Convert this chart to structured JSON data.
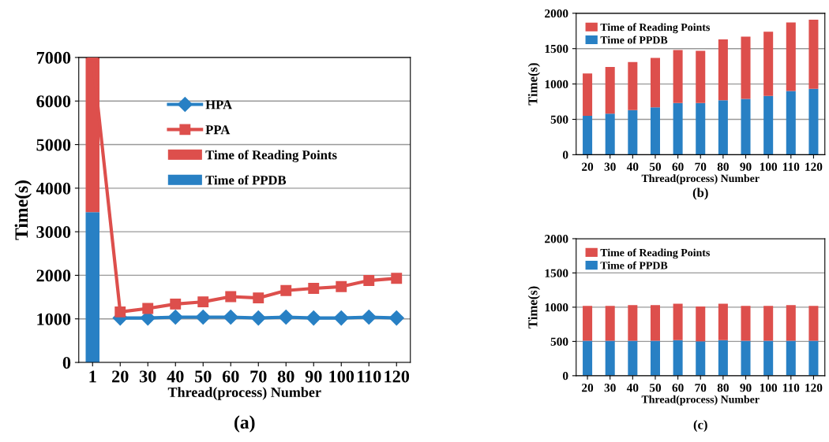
{
  "chart_data": [
    {
      "type": "line",
      "categories": [
        "1",
        "20",
        "30",
        "40",
        "50",
        "60",
        "70",
        "80",
        "90",
        "100",
        "110",
        "120"
      ],
      "xlabel": "Thread(process) Number",
      "ylabel": "Time(s)",
      "annotations": [
        "(a)"
      ],
      "ylim": [
        0,
        7000
      ],
      "yticks": [
        0,
        1000,
        2000,
        3000,
        4000,
        5000,
        6000,
        7000
      ],
      "grid": "y",
      "legend": "top",
      "stacked": true,
      "series": [
        {
          "name": "HPA",
          "type": "line",
          "marker": "diamond",
          "color": "#2880c4",
          "values": [
            null,
            1020,
            1020,
            1040,
            1040,
            1040,
            1020,
            1040,
            1020,
            1020,
            1040,
            1020
          ]
        },
        {
          "name": "PPA",
          "type": "line",
          "marker": "square",
          "color": "#dd4f4c",
          "values": [
            7000,
            1160,
            1240,
            1340,
            1390,
            1510,
            1480,
            1650,
            1700,
            1740,
            1880,
            1930
          ]
        },
        {
          "name": "Time of PPDB",
          "type": "bar",
          "color": "#2880c4",
          "values": [
            3450,
            null,
            null,
            null,
            null,
            null,
            null,
            null,
            null,
            null,
            null,
            null
          ]
        },
        {
          "name": "Time of Reading Points",
          "type": "bar",
          "color": "#dd4f4c",
          "values": [
            3550,
            null,
            null,
            null,
            null,
            null,
            null,
            null,
            null,
            null,
            null,
            null
          ]
        }
      ]
    },
    {
      "type": "bar",
      "stacked": true,
      "categories": [
        "20",
        "30",
        "40",
        "50",
        "60",
        "70",
        "80",
        "90",
        "100",
        "110",
        "120"
      ],
      "xlabel": "Thread(process) Number",
      "ylabel": "Time(s)",
      "annotations": [
        "(b)"
      ],
      "ylim": [
        0,
        2000
      ],
      "yticks": [
        0,
        500,
        1000,
        1500,
        2000
      ],
      "grid": "y",
      "legend": "top left",
      "series": [
        {
          "name": "Time of PPDB",
          "color": "#2880c4",
          "values": [
            550,
            580,
            630,
            670,
            730,
            730,
            770,
            790,
            830,
            900,
            930
          ]
        },
        {
          "name": "Time of Reading Points",
          "color": "#dd4f4c",
          "values": [
            600,
            660,
            680,
            700,
            750,
            740,
            860,
            880,
            910,
            970,
            980
          ]
        }
      ]
    },
    {
      "type": "bar",
      "stacked": true,
      "categories": [
        "20",
        "30",
        "40",
        "50",
        "60",
        "70",
        "80",
        "90",
        "100",
        "110",
        "120"
      ],
      "xlabel": "Thread(process) Number",
      "ylabel": "Time(s)",
      "annotations": [
        "(c)"
      ],
      "ylim": [
        0,
        2000
      ],
      "yticks": [
        0,
        500,
        1000,
        1500,
        2000
      ],
      "grid": "y",
      "legend": "top left",
      "series": [
        {
          "name": "Time of PPDB",
          "color": "#2880c4",
          "values": [
            510,
            510,
            510,
            510,
            520,
            500,
            520,
            510,
            510,
            510,
            510
          ]
        },
        {
          "name": "Time of Reading Points",
          "color": "#dd4f4c",
          "values": [
            510,
            510,
            520,
            520,
            530,
            510,
            530,
            510,
            510,
            520,
            510
          ]
        }
      ]
    }
  ]
}
